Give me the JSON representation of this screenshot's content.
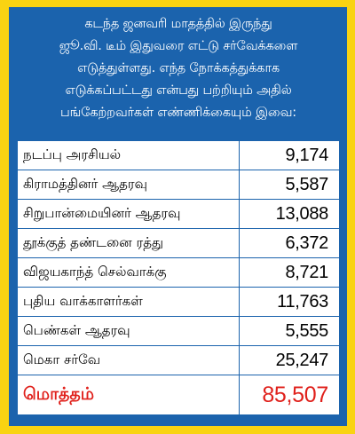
{
  "header": {
    "lines": [
      "கடந்த ஜனவரி மாதத்தில் இருந்து",
      "ஜூ.வி. டீம் இதுவரை எட்டு சர்வேக்களை",
      "எடுத்துள்ளது. எந்த நோக்கத்துக்காக",
      "எடுக்கப்பட்டது என்பது பற்றியும் அதில்",
      "பங்கேற்றவர்கள் எண்ணிக்கையும் இவை:"
    ]
  },
  "rows": [
    {
      "label": "நடப்பு அரசியல்",
      "value": "9,174"
    },
    {
      "label": "கிராமத்தினர் ஆதரவு",
      "value": "5,587"
    },
    {
      "label": "சிறுபான்மையினர் ஆதரவு",
      "value": "13,088"
    },
    {
      "label": "தூக்குத் தண்டனை ரத்து",
      "value": "6,372"
    },
    {
      "label": "விஜயகாந்த் செல்வாக்கு",
      "value": "8,721"
    },
    {
      "label": "புதிய வாக்காளர்கள்",
      "value": "11,763"
    },
    {
      "label": "பெண்கள் ஆதரவு",
      "value": "5,555"
    },
    {
      "label": "மெகா சர்வே",
      "value": "25,247"
    }
  ],
  "total": {
    "label": "மொத்தம்",
    "value": "85,507"
  },
  "colors": {
    "frame": "#f9d312",
    "panel": "#1b63ad",
    "total_text": "#e0201b"
  }
}
